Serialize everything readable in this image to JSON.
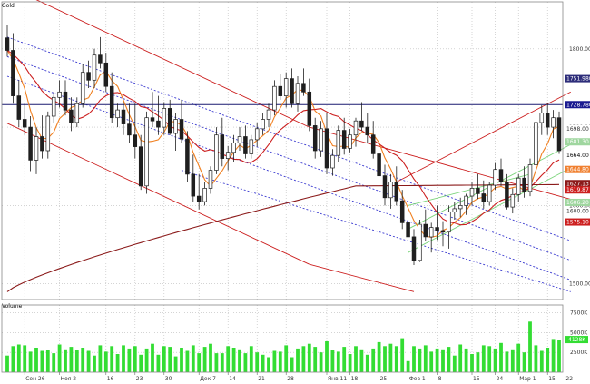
{
  "chart_data": {
    "type": "candlestick",
    "title": "GOLD",
    "symbol_label": "Gold",
    "price_panel": {
      "ylim": [
        1480,
        1860
      ],
      "y_tick_labels": [
        {
          "label": "1800.00",
          "value": 1800
        },
        {
          "label": "1700.00",
          "value": 1700
        },
        {
          "label": "1600.00",
          "value": 1600
        },
        {
          "label": "1500.00",
          "value": 1500
        }
      ],
      "price_tags": [
        {
          "label": "1751.9800",
          "value": 1762.0,
          "bg": "#2d2d7a",
          "fg": "#ffffff"
        },
        {
          "label": "1728.7800",
          "value": 1728.78,
          "bg": "#1a1a90",
          "fg": "#ffffff"
        },
        {
          "label": "1698.00",
          "value": 1698.0,
          "bg": "#ffffff",
          "fg": "#333333"
        },
        {
          "label": "1681.30",
          "value": 1681.3,
          "bg": "#9fd69f",
          "fg": "#ffffff"
        },
        {
          "label": "1664.00",
          "value": 1664.0,
          "bg": "#ffffff",
          "fg": "#000000"
        },
        {
          "label": "1644.80",
          "value": 1646.0,
          "bg": "#f08030",
          "fg": "#ffffff"
        },
        {
          "label": "1627.13",
          "value": 1628.0,
          "bg": "#8b1a1a",
          "fg": "#ffffff"
        },
        {
          "label": "1619.87",
          "value": 1619.9,
          "bg": "#cc1f1f",
          "fg": "#ffffff"
        },
        {
          "label": "1606.20",
          "value": 1604.0,
          "bg": "#9fd69f",
          "fg": "#ffffff"
        },
        {
          "label": "1600.00",
          "value": 1593.0,
          "bg": "#ffffff",
          "fg": "#333333"
        },
        {
          "label": "1575.10",
          "value": 1579.0,
          "bg": "#cc1f1f",
          "fg": "#ffffff"
        }
      ],
      "horizontal_line": {
        "value": 1728.78,
        "color": "#1a1a70"
      },
      "candles": [
        [
          1814,
          1830,
          1790,
          1798
        ],
        [
          1798,
          1820,
          1730,
          1740
        ],
        [
          1740,
          1760,
          1700,
          1710
        ],
        [
          1710,
          1730,
          1690,
          1700
        ],
        [
          1700,
          1714,
          1644,
          1658
        ],
        [
          1658,
          1700,
          1640,
          1688
        ],
        [
          1688,
          1715,
          1660,
          1670
        ],
        [
          1670,
          1720,
          1660,
          1714
        ],
        [
          1714,
          1745,
          1705,
          1738
        ],
        [
          1738,
          1760,
          1725,
          1745
        ],
        [
          1745,
          1760,
          1715,
          1722
        ],
        [
          1722,
          1738,
          1695,
          1706
        ],
        [
          1706,
          1738,
          1700,
          1730
        ],
        [
          1730,
          1780,
          1725,
          1770
        ],
        [
          1770,
          1785,
          1750,
          1760
        ],
        [
          1760,
          1800,
          1750,
          1792
        ],
        [
          1792,
          1815,
          1775,
          1782
        ],
        [
          1782,
          1795,
          1745,
          1752
        ],
        [
          1752,
          1770,
          1705,
          1712
        ],
        [
          1712,
          1730,
          1700,
          1722
        ],
        [
          1722,
          1732,
          1690,
          1704
        ],
        [
          1704,
          1730,
          1680,
          1690
        ],
        [
          1690,
          1730,
          1660,
          1675
        ],
        [
          1675,
          1690,
          1620,
          1625
        ],
        [
          1625,
          1720,
          1615,
          1712
        ],
        [
          1712,
          1745,
          1700,
          1708
        ],
        [
          1708,
          1740,
          1690,
          1700
        ],
        [
          1700,
          1732,
          1690,
          1724
        ],
        [
          1724,
          1735,
          1690,
          1692
        ],
        [
          1692,
          1718,
          1670,
          1710
        ],
        [
          1710,
          1735,
          1680,
          1685
        ],
        [
          1685,
          1695,
          1630,
          1640
        ],
        [
          1640,
          1665,
          1605,
          1612
        ],
        [
          1612,
          1640,
          1595,
          1605
        ],
        [
          1605,
          1630,
          1600,
          1622
        ],
        [
          1622,
          1650,
          1615,
          1645
        ],
        [
          1645,
          1700,
          1640,
          1690
        ],
        [
          1690,
          1712,
          1650,
          1660
        ],
        [
          1660,
          1676,
          1645,
          1668
        ],
        [
          1668,
          1690,
          1655,
          1680
        ],
        [
          1680,
          1700,
          1670,
          1688
        ],
        [
          1688,
          1702,
          1660,
          1666
        ],
        [
          1666,
          1690,
          1660,
          1684
        ],
        [
          1684,
          1706,
          1675,
          1698
        ],
        [
          1698,
          1718,
          1690,
          1710
        ],
        [
          1710,
          1730,
          1700,
          1722
        ],
        [
          1722,
          1760,
          1715,
          1752
        ],
        [
          1752,
          1768,
          1735,
          1740
        ],
        [
          1740,
          1770,
          1725,
          1762
        ],
        [
          1762,
          1775,
          1725,
          1730
        ],
        [
          1730,
          1765,
          1720,
          1756
        ],
        [
          1756,
          1775,
          1740,
          1745
        ],
        [
          1745,
          1762,
          1695,
          1702
        ],
        [
          1702,
          1712,
          1660,
          1670
        ],
        [
          1670,
          1708,
          1662,
          1698
        ],
        [
          1698,
          1718,
          1640,
          1648
        ],
        [
          1648,
          1672,
          1638,
          1664
        ],
        [
          1664,
          1702,
          1655,
          1696
        ],
        [
          1696,
          1712,
          1665,
          1673
        ],
        [
          1673,
          1698,
          1668,
          1690
        ],
        [
          1690,
          1712,
          1675,
          1708
        ],
        [
          1708,
          1732,
          1695,
          1700
        ],
        [
          1700,
          1718,
          1680,
          1690
        ],
        [
          1690,
          1708,
          1660,
          1666
        ],
        [
          1666,
          1678,
          1628,
          1638
        ],
        [
          1638,
          1652,
          1600,
          1610
        ],
        [
          1610,
          1640,
          1596,
          1630
        ],
        [
          1630,
          1650,
          1600,
          1606
        ],
        [
          1606,
          1620,
          1570,
          1578
        ],
        [
          1578,
          1600,
          1545,
          1560
        ],
        [
          1560,
          1570,
          1524,
          1530
        ],
        [
          1530,
          1582,
          1528,
          1576
        ],
        [
          1576,
          1595,
          1555,
          1560
        ],
        [
          1560,
          1578,
          1540,
          1572
        ],
        [
          1572,
          1600,
          1556,
          1568
        ],
        [
          1568,
          1580,
          1548,
          1566
        ],
        [
          1566,
          1600,
          1545,
          1592
        ],
        [
          1592,
          1605,
          1582,
          1596
        ],
        [
          1596,
          1610,
          1585,
          1600
        ],
        [
          1600,
          1615,
          1588,
          1612
        ],
        [
          1612,
          1630,
          1600,
          1622
        ],
        [
          1622,
          1640,
          1608,
          1615
        ],
        [
          1615,
          1632,
          1596,
          1605
        ],
        [
          1605,
          1630,
          1600,
          1626
        ],
        [
          1626,
          1654,
          1620,
          1646
        ],
        [
          1646,
          1660,
          1625,
          1630
        ],
        [
          1630,
          1640,
          1595,
          1598
        ],
        [
          1598,
          1622,
          1590,
          1614
        ],
        [
          1614,
          1640,
          1605,
          1635
        ],
        [
          1635,
          1650,
          1610,
          1618
        ],
        [
          1618,
          1660,
          1612,
          1652
        ],
        [
          1652,
          1715,
          1645,
          1706
        ],
        [
          1706,
          1728,
          1690,
          1718
        ],
        [
          1718,
          1730,
          1690,
          1700
        ],
        [
          1700,
          1722,
          1686,
          1712
        ],
        [
          1712,
          1720,
          1666,
          1670
        ]
      ],
      "moving_averages": [
        {
          "name": "MA fast",
          "color": "#f07f1f"
        },
        {
          "name": "MA mid",
          "color": "#cc1f1f"
        },
        {
          "name": "MA long",
          "color": "#8b1a1a"
        }
      ],
      "channels": [
        {
          "color": "#cc1f1f",
          "style": "solid",
          "lines": [
            [
              0,
              1880,
              52,
              1700
            ],
            [
              0,
              1705,
              52,
              1525
            ],
            [
              52,
              1700,
              97,
              1608
            ],
            [
              52,
              1525,
              70,
              1490
            ],
            [
              67,
              1630,
              97,
              1745
            ]
          ]
        },
        {
          "color": "#3a3ad0",
          "style": "dotted",
          "lines": [
            [
              0,
              1815,
              97,
              1555
            ],
            [
              0,
              1790,
              97,
              1530
            ],
            [
              0,
              1765,
              97,
              1505
            ],
            [
              30,
              1645,
              97,
              1490
            ]
          ]
        },
        {
          "color": "#7ad47a",
          "style": "solid",
          "lines": [
            [
              69,
              1570,
              97,
              1678
            ],
            [
              69,
              1540,
              97,
              1648
            ],
            [
              69,
              1600,
              90,
              1640
            ]
          ]
        }
      ]
    },
    "volume_panel": {
      "title": "Volume",
      "ylim": [
        0,
        8500
      ],
      "y_tick_labels": [
        {
          "label": "7500K",
          "value": 7500
        },
        {
          "label": "5000K",
          "value": 5000
        },
        {
          "label": "2500K",
          "value": 2500
        }
      ],
      "last_value_tag": {
        "label": "4128K",
        "value": 4128
      },
      "values": [
        2100,
        3300,
        3500,
        3400,
        2600,
        3100,
        2700,
        2800,
        2400,
        3500,
        2900,
        3200,
        2800,
        3100,
        2700,
        2100,
        3400,
        2600,
        3300,
        2300,
        3400,
        3000,
        3300,
        2200,
        3000,
        3600,
        2200,
        3300,
        3200,
        2000,
        3100,
        2700,
        3400,
        2400,
        3200,
        3600,
        2400,
        2400,
        3300,
        3100,
        2900,
        2400,
        3300,
        2500,
        2200,
        1900,
        2700,
        2600,
        3400,
        1900,
        3000,
        3300,
        3600,
        3200,
        2500,
        3900,
        2800,
        2600,
        3200,
        2300,
        3300,
        2900,
        2200,
        3000,
        3800,
        3300,
        3600,
        3300,
        4300,
        1400,
        3300,
        3000,
        3400,
        2600,
        3000,
        2900,
        3200,
        2100,
        3500,
        3000,
        2300,
        2500,
        3400,
        3300,
        3000,
        3700,
        2600,
        2900,
        3600,
        2500,
        6400,
        3400,
        2700,
        3100,
        4200,
        4100
      ],
      "color": "#33dd33"
    },
    "x_tick_labels": [
      {
        "label": "Сен 26",
        "index": 3
      },
      {
        "label": "Ноя 2",
        "index": 9
      },
      {
        "label": "16",
        "index": 17
      },
      {
        "label": "23",
        "index": 22
      },
      {
        "label": "30",
        "index": 27
      },
      {
        "label": "Дек 7",
        "index": 33
      },
      {
        "label": "14",
        "index": 38
      },
      {
        "label": "21",
        "index": 43
      },
      {
        "label": "28",
        "index": 48
      },
      {
        "label": "Янв 11",
        "index": 55
      },
      {
        "label": "18",
        "index": 59
      },
      {
        "label": "25",
        "index": 64
      },
      {
        "label": "Фев 1",
        "index": 69
      },
      {
        "label": "8",
        "index": 74
      },
      {
        "label": "15",
        "index": 80
      },
      {
        "label": "24",
        "index": 84
      },
      {
        "label": "Мар 1",
        "index": 88
      },
      {
        "label": "15",
        "index": 93
      },
      {
        "label": "22",
        "index": 96
      }
    ],
    "colors": {
      "up": "#ffffff",
      "down": "#1f1f1f",
      "wick": "#1f1f1f",
      "grid": "#bbbbbb"
    }
  }
}
